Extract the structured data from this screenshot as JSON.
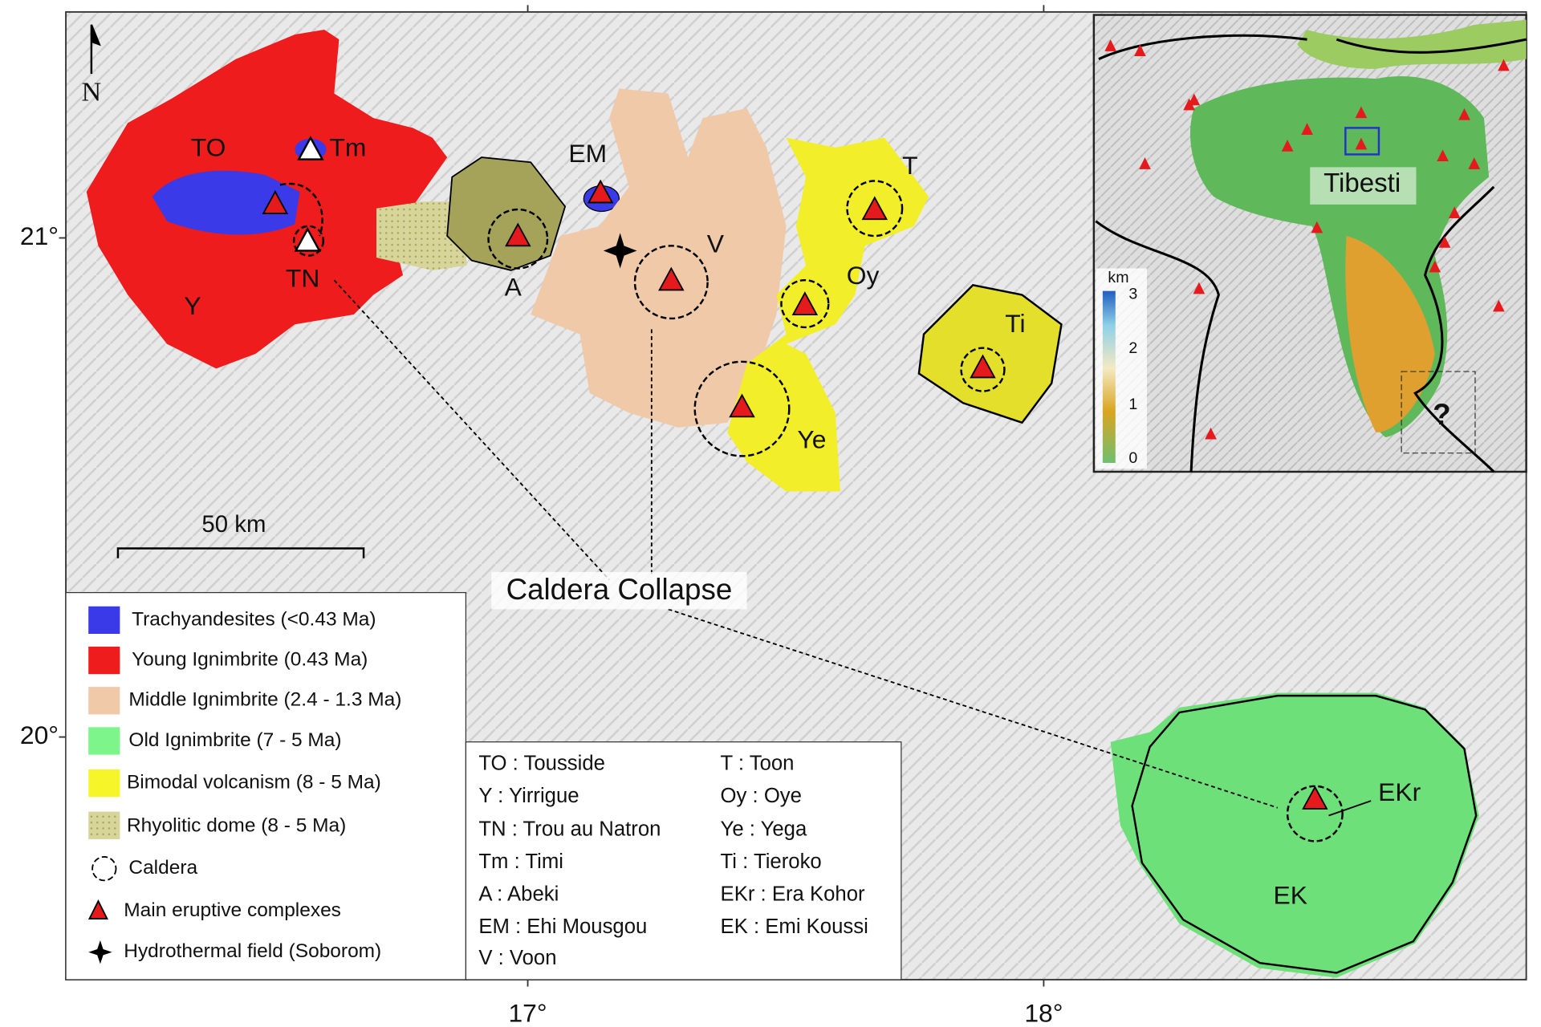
{
  "map": {
    "north": "N",
    "lat_labels": [
      "21°",
      "20°"
    ],
    "lon_labels": [
      "17°",
      "18°"
    ],
    "scale_bar": "50 km",
    "annotation": "Caldera Collapse",
    "volcano_labels": [
      "TO",
      "Tm",
      "TN",
      "Y",
      "A",
      "EM",
      "V",
      "T",
      "Oy",
      "Ti",
      "Ye",
      "EKr",
      "EK"
    ]
  },
  "legend": {
    "items": [
      "Trachyandesites (<0.43 Ma)",
      "Young Ignimbrite (0.43 Ma)",
      "Middle Ignimbrite (2.4 - 1.3 Ma)",
      "Old Ignimbrite (7 - 5 Ma)",
      "Bimodal volcanism (8 - 5 Ma)",
      "Rhyolitic dome (8 - 5 Ma)",
      "Caldera",
      "Main eruptive complexes",
      "Hydrothermal field (Soborom)"
    ]
  },
  "abbreviations": {
    "left": [
      "TO : Tousside",
      "Y : Yirrigue",
      "TN : Trou au Natron",
      "Tm : Timi",
      "A : Abeki",
      "EM : Ehi Mousgou",
      "V : Voon"
    ],
    "right": [
      "T : Toon",
      "Oy : Oye",
      "Ye : Yega",
      "Ti : Tieroko",
      "EKr : Era Kohor",
      "EK : Emi Koussi"
    ]
  },
  "inset": {
    "label": "Tibesti",
    "colorbar_title": "km",
    "colorbar_ticks": [
      0,
      1,
      2,
      3
    ],
    "question": "?"
  }
}
